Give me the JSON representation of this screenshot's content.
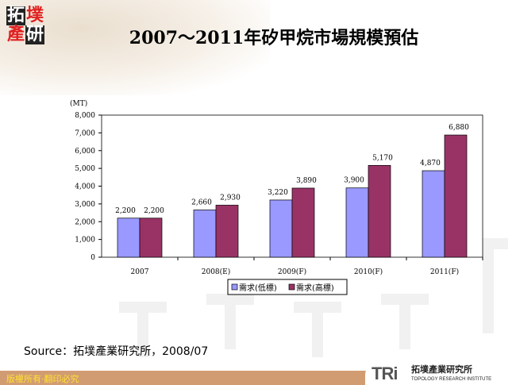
{
  "header": {
    "title": "2007～2011年矽甲烷市場規模預估",
    "logo_text": "拓墣產研"
  },
  "chart_data": {
    "type": "bar",
    "title": "",
    "ylabel": "(MT)",
    "xlabel": "",
    "ylim": [
      0,
      8000
    ],
    "yticks": [
      "0",
      "1,000",
      "2,000",
      "3,000",
      "4,000",
      "5,000",
      "6,000",
      "7,000",
      "8,000"
    ],
    "categories": [
      "2007",
      "2008(E)",
      "2009(F)",
      "2010(F)",
      "2011(F)"
    ],
    "series": [
      {
        "name": "需求(低標)",
        "values": [
          2200,
          2660,
          3220,
          3900,
          4870
        ],
        "labels": [
          "2,200",
          "2,660",
          "3,220",
          "3,900",
          "4,870"
        ],
        "color": "#9999ff"
      },
      {
        "name": "需求(高標)",
        "values": [
          2200,
          2930,
          3890,
          5170,
          6880
        ],
        "labels": [
          "2,200",
          "2,930",
          "3,890",
          "5,170",
          "6,880"
        ],
        "color": "#993366"
      }
    ],
    "grid": false,
    "legend": "bottom"
  },
  "source": "Source：拓墣產業研究所，2008/07",
  "footer": {
    "copyright": "版權所有‧翻印必究",
    "brand_mark": "TRi",
    "brand_cn": "拓墣產業研究所",
    "brand_en": "TOPOLOGY RESEARCH INSTITUTE"
  }
}
